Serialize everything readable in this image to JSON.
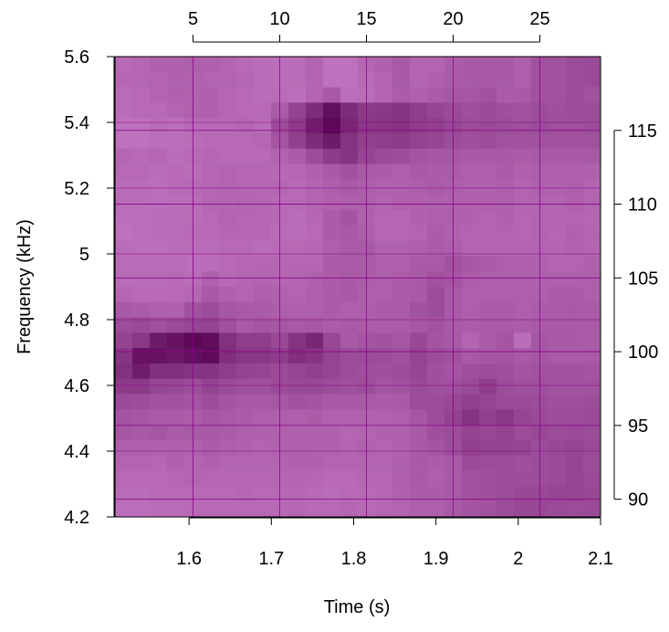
{
  "chart_data": {
    "type": "heatmap",
    "title": "",
    "xlabel": "Time (s)",
    "ylabel": "Frequency (kHz)",
    "xlim": [
      1.51,
      2.1
    ],
    "ylim": [
      4.2,
      5.6
    ],
    "x_ticks": [
      "1.6",
      "1.7",
      "1.8",
      "1.9",
      "2",
      "2.1"
    ],
    "y_ticks": [
      "4.2",
      "4.4",
      "4.6",
      "4.8",
      "5",
      "5.2",
      "5.4",
      "5.6"
    ],
    "top_axis": {
      "range": [
        0.5,
        28.5
      ],
      "ticks": [
        "5",
        "10",
        "15",
        "20",
        "25"
      ]
    },
    "right_axis": {
      "range": [
        88.8,
        120.0
      ],
      "ticks": [
        "90",
        "95",
        "100",
        "105",
        "110",
        "115"
      ]
    },
    "grid": true,
    "colors": {
      "low": "#cc80cc",
      "high": "#550050",
      "grid_line": "#8b008b"
    },
    "n_cols": 28,
    "n_rows": 30,
    "values": [
      [
        0.18,
        0.2,
        0.24,
        0.24,
        0.26,
        0.24,
        0.22,
        0.18,
        0.16,
        0.14,
        0.16,
        0.22,
        0.12,
        0.12,
        0.2,
        0.24,
        0.3,
        0.22,
        0.22,
        0.28,
        0.3,
        0.3,
        0.3,
        0.26,
        0.36,
        0.36,
        0.4,
        0.42
      ],
      [
        0.2,
        0.2,
        0.22,
        0.24,
        0.24,
        0.22,
        0.22,
        0.2,
        0.16,
        0.14,
        0.16,
        0.22,
        0.12,
        0.12,
        0.18,
        0.22,
        0.3,
        0.22,
        0.24,
        0.28,
        0.3,
        0.3,
        0.3,
        0.26,
        0.36,
        0.36,
        0.4,
        0.42
      ],
      [
        0.16,
        0.18,
        0.22,
        0.24,
        0.24,
        0.24,
        0.2,
        0.18,
        0.16,
        0.16,
        0.14,
        0.22,
        0.3,
        0.14,
        0.16,
        0.22,
        0.28,
        0.24,
        0.28,
        0.32,
        0.32,
        0.36,
        0.28,
        0.3,
        0.36,
        0.36,
        0.4,
        0.36
      ],
      [
        0.16,
        0.18,
        0.18,
        0.22,
        0.24,
        0.24,
        0.2,
        0.18,
        0.18,
        0.28,
        0.48,
        0.66,
        0.88,
        0.66,
        0.54,
        0.56,
        0.6,
        0.52,
        0.46,
        0.42,
        0.38,
        0.42,
        0.38,
        0.36,
        0.4,
        0.38,
        0.4,
        0.4
      ],
      [
        0.12,
        0.12,
        0.16,
        0.14,
        0.18,
        0.18,
        0.18,
        0.2,
        0.16,
        0.4,
        0.54,
        0.78,
        0.95,
        0.7,
        0.56,
        0.58,
        0.6,
        0.52,
        0.5,
        0.44,
        0.4,
        0.42,
        0.4,
        0.38,
        0.4,
        0.38,
        0.38,
        0.4
      ],
      [
        0.12,
        0.12,
        0.14,
        0.14,
        0.16,
        0.18,
        0.18,
        0.18,
        0.2,
        0.34,
        0.5,
        0.66,
        0.8,
        0.6,
        0.5,
        0.52,
        0.54,
        0.48,
        0.46,
        0.4,
        0.38,
        0.4,
        0.36,
        0.36,
        0.36,
        0.36,
        0.36,
        0.36
      ],
      [
        0.2,
        0.18,
        0.2,
        0.16,
        0.18,
        0.2,
        0.18,
        0.18,
        0.18,
        0.22,
        0.28,
        0.4,
        0.54,
        0.6,
        0.46,
        0.42,
        0.4,
        0.34,
        0.32,
        0.32,
        0.3,
        0.3,
        0.3,
        0.28,
        0.3,
        0.3,
        0.3,
        0.3
      ],
      [
        0.18,
        0.18,
        0.16,
        0.18,
        0.16,
        0.2,
        0.22,
        0.2,
        0.2,
        0.18,
        0.2,
        0.24,
        0.3,
        0.36,
        0.3,
        0.28,
        0.26,
        0.3,
        0.28,
        0.28,
        0.26,
        0.26,
        0.28,
        0.24,
        0.26,
        0.26,
        0.26,
        0.24
      ],
      [
        0.16,
        0.16,
        0.14,
        0.18,
        0.18,
        0.2,
        0.22,
        0.2,
        0.2,
        0.2,
        0.18,
        0.22,
        0.26,
        0.3,
        0.26,
        0.24,
        0.24,
        0.26,
        0.28,
        0.26,
        0.24,
        0.24,
        0.26,
        0.22,
        0.24,
        0.24,
        0.26,
        0.22
      ],
      [
        0.16,
        0.16,
        0.14,
        0.16,
        0.16,
        0.2,
        0.2,
        0.22,
        0.2,
        0.18,
        0.18,
        0.22,
        0.24,
        0.26,
        0.26,
        0.22,
        0.24,
        0.24,
        0.26,
        0.24,
        0.24,
        0.24,
        0.26,
        0.22,
        0.22,
        0.22,
        0.24,
        0.22
      ],
      [
        0.14,
        0.14,
        0.16,
        0.16,
        0.16,
        0.18,
        0.22,
        0.2,
        0.2,
        0.18,
        0.16,
        0.2,
        0.28,
        0.34,
        0.24,
        0.2,
        0.2,
        0.24,
        0.26,
        0.26,
        0.24,
        0.22,
        0.24,
        0.2,
        0.22,
        0.22,
        0.22,
        0.2
      ],
      [
        0.12,
        0.14,
        0.16,
        0.16,
        0.18,
        0.18,
        0.2,
        0.2,
        0.2,
        0.16,
        0.16,
        0.18,
        0.28,
        0.3,
        0.26,
        0.2,
        0.2,
        0.22,
        0.28,
        0.24,
        0.22,
        0.22,
        0.22,
        0.2,
        0.22,
        0.2,
        0.24,
        0.22
      ],
      [
        0.16,
        0.14,
        0.14,
        0.16,
        0.16,
        0.16,
        0.18,
        0.18,
        0.16,
        0.18,
        0.18,
        0.2,
        0.26,
        0.3,
        0.3,
        0.24,
        0.24,
        0.26,
        0.28,
        0.26,
        0.22,
        0.22,
        0.22,
        0.22,
        0.22,
        0.22,
        0.24,
        0.22
      ],
      [
        0.16,
        0.16,
        0.16,
        0.16,
        0.14,
        0.16,
        0.18,
        0.2,
        0.2,
        0.2,
        0.2,
        0.2,
        0.28,
        0.28,
        0.28,
        0.26,
        0.24,
        0.3,
        0.3,
        0.36,
        0.32,
        0.3,
        0.26,
        0.24,
        0.24,
        0.22,
        0.22,
        0.24
      ],
      [
        0.16,
        0.16,
        0.16,
        0.18,
        0.16,
        0.24,
        0.18,
        0.2,
        0.22,
        0.2,
        0.22,
        0.24,
        0.28,
        0.3,
        0.28,
        0.26,
        0.28,
        0.3,
        0.36,
        0.34,
        0.28,
        0.26,
        0.26,
        0.26,
        0.24,
        0.24,
        0.24,
        0.26
      ],
      [
        0.2,
        0.18,
        0.18,
        0.18,
        0.2,
        0.3,
        0.24,
        0.22,
        0.26,
        0.24,
        0.22,
        0.26,
        0.28,
        0.3,
        0.26,
        0.26,
        0.28,
        0.3,
        0.4,
        0.3,
        0.26,
        0.26,
        0.26,
        0.26,
        0.26,
        0.28,
        0.28,
        0.26
      ],
      [
        0.3,
        0.28,
        0.26,
        0.24,
        0.36,
        0.4,
        0.32,
        0.3,
        0.28,
        0.26,
        0.24,
        0.26,
        0.28,
        0.26,
        0.26,
        0.28,
        0.28,
        0.36,
        0.4,
        0.3,
        0.26,
        0.28,
        0.28,
        0.26,
        0.28,
        0.28,
        0.3,
        0.28
      ],
      [
        0.4,
        0.44,
        0.38,
        0.42,
        0.46,
        0.48,
        0.38,
        0.3,
        0.34,
        0.32,
        0.3,
        0.32,
        0.28,
        0.3,
        0.28,
        0.28,
        0.28,
        0.32,
        0.36,
        0.3,
        0.28,
        0.3,
        0.3,
        0.28,
        0.3,
        0.3,
        0.3,
        0.3
      ],
      [
        0.48,
        0.56,
        0.8,
        0.86,
        0.94,
        0.9,
        0.62,
        0.52,
        0.52,
        0.44,
        0.6,
        0.7,
        0.44,
        0.3,
        0.34,
        0.36,
        0.32,
        0.44,
        0.34,
        0.3,
        0.22,
        0.28,
        0.34,
        0.16,
        0.32,
        0.3,
        0.3,
        0.28
      ],
      [
        0.58,
        0.86,
        0.86,
        0.82,
        0.88,
        0.92,
        0.64,
        0.56,
        0.56,
        0.52,
        0.64,
        0.6,
        0.48,
        0.4,
        0.42,
        0.4,
        0.38,
        0.48,
        0.4,
        0.36,
        0.3,
        0.32,
        0.34,
        0.3,
        0.32,
        0.3,
        0.3,
        0.3
      ],
      [
        0.62,
        0.78,
        0.64,
        0.64,
        0.6,
        0.6,
        0.52,
        0.48,
        0.46,
        0.42,
        0.46,
        0.5,
        0.46,
        0.4,
        0.38,
        0.38,
        0.4,
        0.46,
        0.38,
        0.34,
        0.38,
        0.4,
        0.38,
        0.34,
        0.36,
        0.36,
        0.36,
        0.34
      ],
      [
        0.54,
        0.54,
        0.46,
        0.44,
        0.4,
        0.48,
        0.42,
        0.38,
        0.38,
        0.42,
        0.44,
        0.44,
        0.4,
        0.38,
        0.4,
        0.34,
        0.36,
        0.42,
        0.38,
        0.38,
        0.42,
        0.52,
        0.4,
        0.38,
        0.38,
        0.36,
        0.36,
        0.36
      ],
      [
        0.42,
        0.4,
        0.36,
        0.36,
        0.34,
        0.4,
        0.34,
        0.3,
        0.3,
        0.32,
        0.36,
        0.34,
        0.3,
        0.3,
        0.3,
        0.28,
        0.3,
        0.4,
        0.4,
        0.44,
        0.5,
        0.46,
        0.42,
        0.42,
        0.4,
        0.38,
        0.38,
        0.4
      ],
      [
        0.34,
        0.32,
        0.3,
        0.3,
        0.28,
        0.32,
        0.3,
        0.28,
        0.26,
        0.26,
        0.26,
        0.28,
        0.24,
        0.24,
        0.24,
        0.24,
        0.26,
        0.32,
        0.4,
        0.48,
        0.6,
        0.5,
        0.56,
        0.46,
        0.42,
        0.4,
        0.4,
        0.42
      ],
      [
        0.32,
        0.3,
        0.32,
        0.28,
        0.3,
        0.3,
        0.28,
        0.26,
        0.24,
        0.24,
        0.24,
        0.24,
        0.24,
        0.2,
        0.22,
        0.24,
        0.24,
        0.3,
        0.38,
        0.4,
        0.48,
        0.44,
        0.48,
        0.4,
        0.44,
        0.4,
        0.42,
        0.4
      ],
      [
        0.26,
        0.26,
        0.24,
        0.26,
        0.24,
        0.28,
        0.26,
        0.24,
        0.22,
        0.24,
        0.26,
        0.24,
        0.24,
        0.22,
        0.24,
        0.22,
        0.24,
        0.3,
        0.34,
        0.4,
        0.5,
        0.48,
        0.48,
        0.46,
        0.4,
        0.44,
        0.46,
        0.42
      ],
      [
        0.22,
        0.22,
        0.2,
        0.24,
        0.22,
        0.24,
        0.22,
        0.22,
        0.22,
        0.22,
        0.24,
        0.24,
        0.22,
        0.22,
        0.22,
        0.22,
        0.26,
        0.3,
        0.28,
        0.3,
        0.42,
        0.4,
        0.4,
        0.38,
        0.4,
        0.42,
        0.46,
        0.4
      ],
      [
        0.18,
        0.18,
        0.18,
        0.2,
        0.22,
        0.2,
        0.2,
        0.2,
        0.2,
        0.2,
        0.22,
        0.2,
        0.18,
        0.18,
        0.2,
        0.2,
        0.26,
        0.3,
        0.26,
        0.3,
        0.36,
        0.38,
        0.4,
        0.4,
        0.4,
        0.42,
        0.46,
        0.42
      ],
      [
        0.16,
        0.16,
        0.18,
        0.18,
        0.18,
        0.18,
        0.18,
        0.2,
        0.18,
        0.18,
        0.2,
        0.18,
        0.16,
        0.18,
        0.18,
        0.2,
        0.24,
        0.28,
        0.28,
        0.3,
        0.36,
        0.38,
        0.4,
        0.44,
        0.44,
        0.46,
        0.46,
        0.44
      ],
      [
        0.14,
        0.14,
        0.16,
        0.16,
        0.18,
        0.18,
        0.18,
        0.18,
        0.18,
        0.18,
        0.2,
        0.18,
        0.18,
        0.2,
        0.18,
        0.2,
        0.22,
        0.26,
        0.26,
        0.3,
        0.34,
        0.36,
        0.4,
        0.44,
        0.44,
        0.42,
        0.4,
        0.42
      ]
    ]
  }
}
